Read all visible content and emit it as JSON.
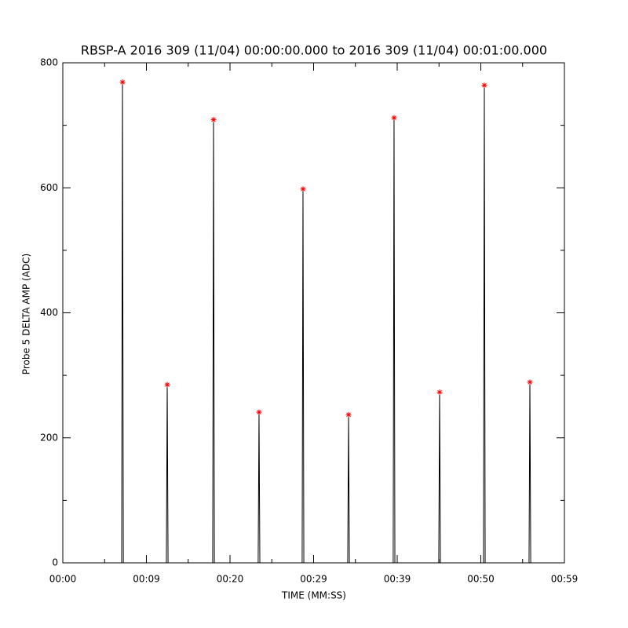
{
  "chart_data": {
    "type": "line",
    "title": "RBSP-A 2016 309 (11/04) 00:00:00.000 to 2016 309 (11/04) 00:01:00.000",
    "xlabel": "TIME (MM:SS)",
    "ylabel": "Probe 5 DELTA AMP (ADC)",
    "xlim": [
      0,
      60
    ],
    "ylim": [
      0,
      800
    ],
    "xticks": [
      {
        "value": 0,
        "label": "00:00"
      },
      {
        "value": 10,
        "label": "00:09"
      },
      {
        "value": 20,
        "label": "00:20"
      },
      {
        "value": 30,
        "label": "00:29"
      },
      {
        "value": 40,
        "label": "00:39"
      },
      {
        "value": 50,
        "label": "00:50"
      },
      {
        "value": 60,
        "label": "00:59"
      }
    ],
    "yticks": [
      0,
      200,
      400,
      600,
      800
    ],
    "xminorticks": [
      5,
      15,
      25,
      35,
      45,
      55
    ],
    "yminorticks": [
      100,
      300,
      500,
      700
    ],
    "series": [
      {
        "type": "line",
        "color": "#000000",
        "x": [
          3,
          7.04,
          7.14,
          7.24,
          12.39,
          12.49,
          12.59,
          17.93,
          18.03,
          18.13,
          23.37,
          23.47,
          23.57,
          28.63,
          28.73,
          28.83,
          34.08,
          34.18,
          34.28,
          39.52,
          39.62,
          39.72,
          44.97,
          45.07,
          45.17,
          50.32,
          50.42,
          50.52,
          55.77,
          55.87,
          55.97,
          59.5
        ],
        "values": [
          0,
          0,
          769,
          0,
          0,
          285,
          0,
          0,
          709,
          0,
          0,
          241,
          0,
          0,
          598,
          0,
          0,
          237,
          0,
          0,
          712,
          0,
          0,
          273,
          0,
          0,
          764,
          0,
          0,
          289,
          0,
          0
        ]
      },
      {
        "type": "scatter",
        "color": "#ff0000",
        "x": [
          7.14,
          12.49,
          18.03,
          23.47,
          28.73,
          34.18,
          39.62,
          45.07,
          50.42,
          55.87
        ],
        "values": [
          769,
          285,
          709,
          241,
          598,
          237,
          712,
          273,
          764,
          289
        ]
      }
    ]
  }
}
